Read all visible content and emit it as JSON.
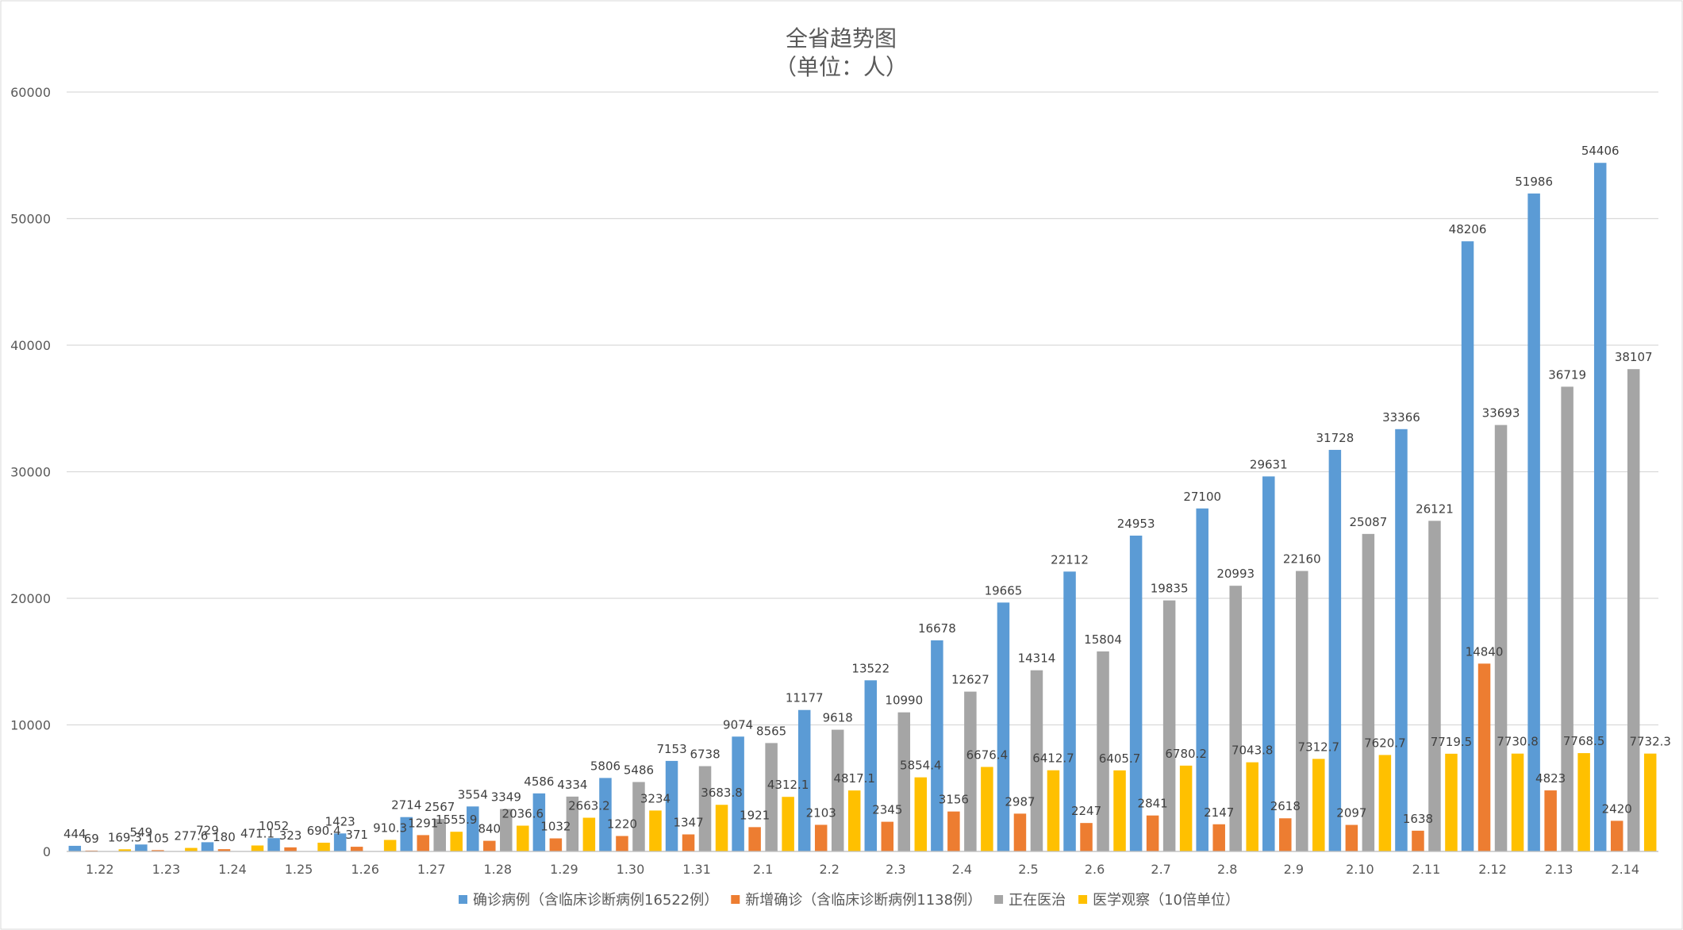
{
  "chart_data": {
    "type": "bar",
    "title": "全省趋势图",
    "subtitle": "（单位：人）",
    "xlabel": "",
    "ylabel": "",
    "ylim": [
      0,
      60000
    ],
    "yticks": [
      0,
      10000,
      20000,
      30000,
      40000,
      50000,
      60000
    ],
    "grid": true,
    "legend_position": "bottom",
    "categories": [
      "1.22",
      "1.23",
      "1.24",
      "1.25",
      "1.26",
      "1.27",
      "1.28",
      "1.29",
      "1.30",
      "1.31",
      "2.1",
      "2.2",
      "2.3",
      "2.4",
      "2.5",
      "2.6",
      "2.7",
      "2.8",
      "2.9",
      "2.10",
      "2.11",
      "2.12",
      "2.13",
      "2.14"
    ],
    "series": [
      {
        "name": "确诊病例（含临床诊断病例16522例）",
        "color": "#5B9BD5",
        "values": [
          444,
          549,
          729,
          1052,
          1423,
          2714,
          3554,
          4586,
          5806,
          7153,
          9074,
          11177,
          13522,
          16678,
          19665,
          22112,
          24953,
          27100,
          29631,
          31728,
          33366,
          48206,
          51986,
          54406
        ],
        "labels": [
          "444",
          "549",
          "729",
          "1052",
          "1423",
          "2714",
          "3554",
          "4586",
          "5806",
          "7153",
          "9074",
          "11177",
          "13522",
          "16678",
          "19665",
          "22112",
          "24953",
          "27100",
          "29631",
          "31728",
          "33366",
          "48206",
          "51986",
          "54406"
        ]
      },
      {
        "name": "新增确诊（含临床诊断病例1138例）",
        "color": "#ED7D31",
        "values": [
          69,
          105,
          180,
          323,
          371,
          1291,
          840,
          1032,
          1220,
          1347,
          1921,
          2103,
          2345,
          3156,
          2987,
          2247,
          2841,
          2147,
          2618,
          2097,
          1638,
          14840,
          4823,
          2420
        ],
        "labels": [
          "69",
          "105",
          "180",
          "323",
          "371",
          "1291",
          "840",
          "1032",
          "1220",
          "1347",
          "1921",
          "2103",
          "2345",
          "3156",
          "2987",
          "2247",
          "2841",
          "2147",
          "2618",
          "2097",
          "1638",
          "14840",
          "4823",
          "2420"
        ]
      },
      {
        "name": "正在医治",
        "color": "#A5A5A5",
        "values": [
          null,
          null,
          null,
          null,
          null,
          2567,
          3349,
          4334,
          5486,
          6738,
          8565,
          9618,
          10990,
          12627,
          14314,
          15804,
          19835,
          20993,
          22160,
          25087,
          26121,
          33693,
          36719,
          38107
        ],
        "labels": [
          "",
          "",
          "",
          "",
          "",
          "2567",
          "3349",
          "4334",
          "5486",
          "6738",
          "8565",
          "9618",
          "10990",
          "12627",
          "14314",
          "15804",
          "19835",
          "20993",
          "22160",
          "25087",
          "26121",
          "33693",
          "36719",
          "38107"
        ]
      },
      {
        "name": "医学观察（10倍单位）",
        "color": "#FFC000",
        "values": [
          169.3,
          277.6,
          471.1,
          690.4,
          910.3,
          1555.9,
          2036.6,
          2663.2,
          3234,
          3683.8,
          4312.1,
          4817.1,
          5854.4,
          6676.4,
          6412.7,
          6405.7,
          6780.2,
          7043.8,
          7312.7,
          7620.7,
          7719.5,
          7730.8,
          7768.5,
          7732.3
        ],
        "labels": [
          "169.3",
          "277.6",
          "471.1",
          "690.4",
          "910.3",
          "1555.9",
          "2036.6",
          "2663.2",
          "3234",
          "3683.8",
          "4312.1",
          "4817.1",
          "5854.4",
          "6676.4",
          "6412.7",
          "6405.7",
          "6780.2",
          "7043.8",
          "7312.7",
          "7620.7",
          "7719.5",
          "7730.8",
          "7768.5",
          "7732.3"
        ]
      }
    ]
  }
}
